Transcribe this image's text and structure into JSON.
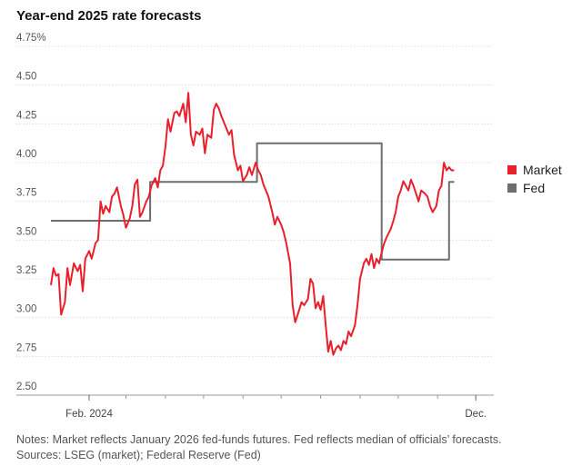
{
  "title": "Year-end 2025 rate forecasts",
  "notes": "Notes: Market reflects January 2026 fed-funds futures. Fed reflects median of officials’ forecasts.",
  "sources": "Sources: LSEG (market); Federal Reserve (Fed)",
  "chart_data": {
    "type": "line",
    "title": "Year-end 2025 rate forecasts",
    "xlabel": "",
    "ylabel": "",
    "ylim": [
      2.5,
      4.75
    ],
    "xlim": [
      "2024-01-02",
      "2024-12-13"
    ],
    "y_ticks": [
      "4.75%",
      "4.50",
      "4.25",
      "4.00",
      "3.75",
      "3.50",
      "3.25",
      "3.00",
      "2.75",
      "2.50"
    ],
    "y_tick_values": [
      4.75,
      4.5,
      4.25,
      4.0,
      3.75,
      3.5,
      3.25,
      3.0,
      2.75,
      2.5
    ],
    "x_tick_labels": [
      {
        "date": "2024-02-01",
        "label": "Feb. 2024"
      },
      {
        "date": "2024-12-01",
        "label": "Dec."
      }
    ],
    "x_minor_ticks": [
      "2024-03-01",
      "2024-04-01",
      "2024-05-01",
      "2024-06-01",
      "2024-07-01",
      "2024-08-01",
      "2024-09-01",
      "2024-10-01",
      "2024-11-01"
    ],
    "grid": true,
    "legend": "right",
    "series": [
      {
        "name": "Market",
        "color": "#e8202c",
        "points": [
          [
            "2024-01-02",
            3.21
          ],
          [
            "2024-01-04",
            3.32
          ],
          [
            "2024-01-06",
            3.27
          ],
          [
            "2024-01-08",
            3.28
          ],
          [
            "2024-01-10",
            3.02
          ],
          [
            "2024-01-13",
            3.1
          ],
          [
            "2024-01-15",
            3.32
          ],
          [
            "2024-01-17",
            3.21
          ],
          [
            "2024-01-20",
            3.35
          ],
          [
            "2024-01-23",
            3.3
          ],
          [
            "2024-01-25",
            3.34
          ],
          [
            "2024-01-27",
            3.17
          ],
          [
            "2024-01-29",
            3.38
          ],
          [
            "2024-02-01",
            3.43
          ],
          [
            "2024-02-03",
            3.38
          ],
          [
            "2024-02-06",
            3.48
          ],
          [
            "2024-02-08",
            3.5
          ],
          [
            "2024-02-10",
            3.75
          ],
          [
            "2024-02-12",
            3.67
          ],
          [
            "2024-02-14",
            3.72
          ],
          [
            "2024-02-17",
            3.68
          ],
          [
            "2024-02-19",
            3.78
          ],
          [
            "2024-02-21",
            3.8
          ],
          [
            "2024-02-23",
            3.84
          ],
          [
            "2024-02-26",
            3.72
          ],
          [
            "2024-02-28",
            3.66
          ],
          [
            "2024-03-01",
            3.58
          ],
          [
            "2024-03-04",
            3.64
          ],
          [
            "2024-03-06",
            3.72
          ],
          [
            "2024-03-08",
            3.86
          ],
          [
            "2024-03-10",
            3.89
          ],
          [
            "2024-03-12",
            3.65
          ],
          [
            "2024-03-14",
            3.68
          ],
          [
            "2024-03-17",
            3.75
          ],
          [
            "2024-03-19",
            3.78
          ],
          [
            "2024-03-21",
            3.85
          ],
          [
            "2024-03-24",
            3.9
          ],
          [
            "2024-03-26",
            3.84
          ],
          [
            "2024-03-28",
            3.95
          ],
          [
            "2024-03-30",
            3.98
          ],
          [
            "2024-04-01",
            4.1
          ],
          [
            "2024-04-03",
            4.28
          ],
          [
            "2024-04-05",
            4.2
          ],
          [
            "2024-04-08",
            4.32
          ],
          [
            "2024-04-10",
            4.33
          ],
          [
            "2024-04-12",
            4.3
          ],
          [
            "2024-04-15",
            4.38
          ],
          [
            "2024-04-17",
            4.26
          ],
          [
            "2024-04-19",
            4.45
          ],
          [
            "2024-04-21",
            4.18
          ],
          [
            "2024-04-23",
            4.11
          ],
          [
            "2024-04-25",
            4.2
          ],
          [
            "2024-04-28",
            4.18
          ],
          [
            "2024-04-30",
            4.22
          ],
          [
            "2024-05-02",
            4.06
          ],
          [
            "2024-05-04",
            4.18
          ],
          [
            "2024-05-07",
            4.16
          ],
          [
            "2024-05-09",
            4.34
          ],
          [
            "2024-05-11",
            4.38
          ],
          [
            "2024-05-13",
            4.35
          ],
          [
            "2024-05-15",
            4.3
          ],
          [
            "2024-05-17",
            4.26
          ],
          [
            "2024-05-19",
            4.22
          ],
          [
            "2024-05-21",
            4.18
          ],
          [
            "2024-05-23",
            4.21
          ],
          [
            "2024-05-25",
            4.05
          ],
          [
            "2024-05-28",
            3.95
          ],
          [
            "2024-05-30",
            3.98
          ],
          [
            "2024-06-01",
            3.88
          ],
          [
            "2024-06-04",
            3.92
          ],
          [
            "2024-06-06",
            3.97
          ],
          [
            "2024-06-08",
            3.92
          ],
          [
            "2024-06-11",
            4.0
          ],
          [
            "2024-06-13",
            3.95
          ],
          [
            "2024-06-15",
            3.92
          ],
          [
            "2024-06-17",
            3.86
          ],
          [
            "2024-06-19",
            3.82
          ],
          [
            "2024-06-21",
            3.78
          ],
          [
            "2024-06-24",
            3.68
          ],
          [
            "2024-06-26",
            3.6
          ],
          [
            "2024-06-28",
            3.65
          ],
          [
            "2024-07-01",
            3.6
          ],
          [
            "2024-07-03",
            3.55
          ],
          [
            "2024-07-05",
            3.48
          ],
          [
            "2024-07-08",
            3.35
          ],
          [
            "2024-07-10",
            3.08
          ],
          [
            "2024-07-12",
            2.97
          ],
          [
            "2024-07-14",
            3.02
          ],
          [
            "2024-07-17",
            3.1
          ],
          [
            "2024-07-19",
            3.08
          ],
          [
            "2024-07-22",
            3.12
          ],
          [
            "2024-07-24",
            3.25
          ],
          [
            "2024-07-26",
            3.22
          ],
          [
            "2024-07-28",
            3.06
          ],
          [
            "2024-07-30",
            3.1
          ],
          [
            "2024-08-01",
            3.05
          ],
          [
            "2024-08-03",
            3.14
          ],
          [
            "2024-08-05",
            2.95
          ],
          [
            "2024-08-07",
            2.78
          ],
          [
            "2024-08-09",
            2.85
          ],
          [
            "2024-08-11",
            2.76
          ],
          [
            "2024-08-13",
            2.8
          ],
          [
            "2024-08-15",
            2.82
          ],
          [
            "2024-08-17",
            2.79
          ],
          [
            "2024-08-19",
            2.85
          ],
          [
            "2024-08-21",
            2.83
          ],
          [
            "2024-08-23",
            2.91
          ],
          [
            "2024-08-25",
            2.88
          ],
          [
            "2024-08-28",
            2.95
          ],
          [
            "2024-08-30",
            3.08
          ],
          [
            "2024-09-01",
            3.25
          ],
          [
            "2024-09-04",
            3.35
          ],
          [
            "2024-09-06",
            3.38
          ],
          [
            "2024-09-08",
            3.34
          ],
          [
            "2024-09-10",
            3.41
          ],
          [
            "2024-09-12",
            3.32
          ],
          [
            "2024-09-14",
            3.38
          ],
          [
            "2024-09-16",
            3.35
          ],
          [
            "2024-09-18",
            3.42
          ],
          [
            "2024-09-20",
            3.48
          ],
          [
            "2024-09-22",
            3.52
          ],
          [
            "2024-09-25",
            3.57
          ],
          [
            "2024-09-27",
            3.62
          ],
          [
            "2024-09-29",
            3.68
          ],
          [
            "2024-10-01",
            3.78
          ],
          [
            "2024-10-03",
            3.82
          ],
          [
            "2024-10-05",
            3.88
          ],
          [
            "2024-10-07",
            3.85
          ],
          [
            "2024-10-09",
            3.82
          ],
          [
            "2024-10-11",
            3.89
          ],
          [
            "2024-10-13",
            3.85
          ],
          [
            "2024-10-15",
            3.8
          ],
          [
            "2024-10-17",
            3.75
          ],
          [
            "2024-10-19",
            3.82
          ],
          [
            "2024-10-22",
            3.8
          ],
          [
            "2024-10-24",
            3.78
          ],
          [
            "2024-10-26",
            3.72
          ],
          [
            "2024-10-28",
            3.68
          ],
          [
            "2024-10-31",
            3.72
          ],
          [
            "2024-11-02",
            3.82
          ],
          [
            "2024-11-04",
            3.85
          ],
          [
            "2024-11-06",
            4.0
          ],
          [
            "2024-11-08",
            3.95
          ],
          [
            "2024-11-10",
            3.97
          ],
          [
            "2024-11-12",
            3.95
          ],
          [
            "2024-11-14",
            3.95
          ]
        ]
      },
      {
        "name": "Fed",
        "color": "#6e6e6e",
        "points": [
          [
            "2024-01-02",
            3.625
          ],
          [
            "2024-03-20",
            3.625
          ],
          [
            "2024-03-20",
            3.875
          ],
          [
            "2024-06-12",
            3.875
          ],
          [
            "2024-06-12",
            4.125
          ],
          [
            "2024-09-18",
            4.125
          ],
          [
            "2024-09-18",
            3.375
          ],
          [
            "2024-11-10",
            3.375
          ],
          [
            "2024-11-10",
            3.875
          ],
          [
            "2024-11-14",
            3.875
          ]
        ]
      }
    ]
  }
}
